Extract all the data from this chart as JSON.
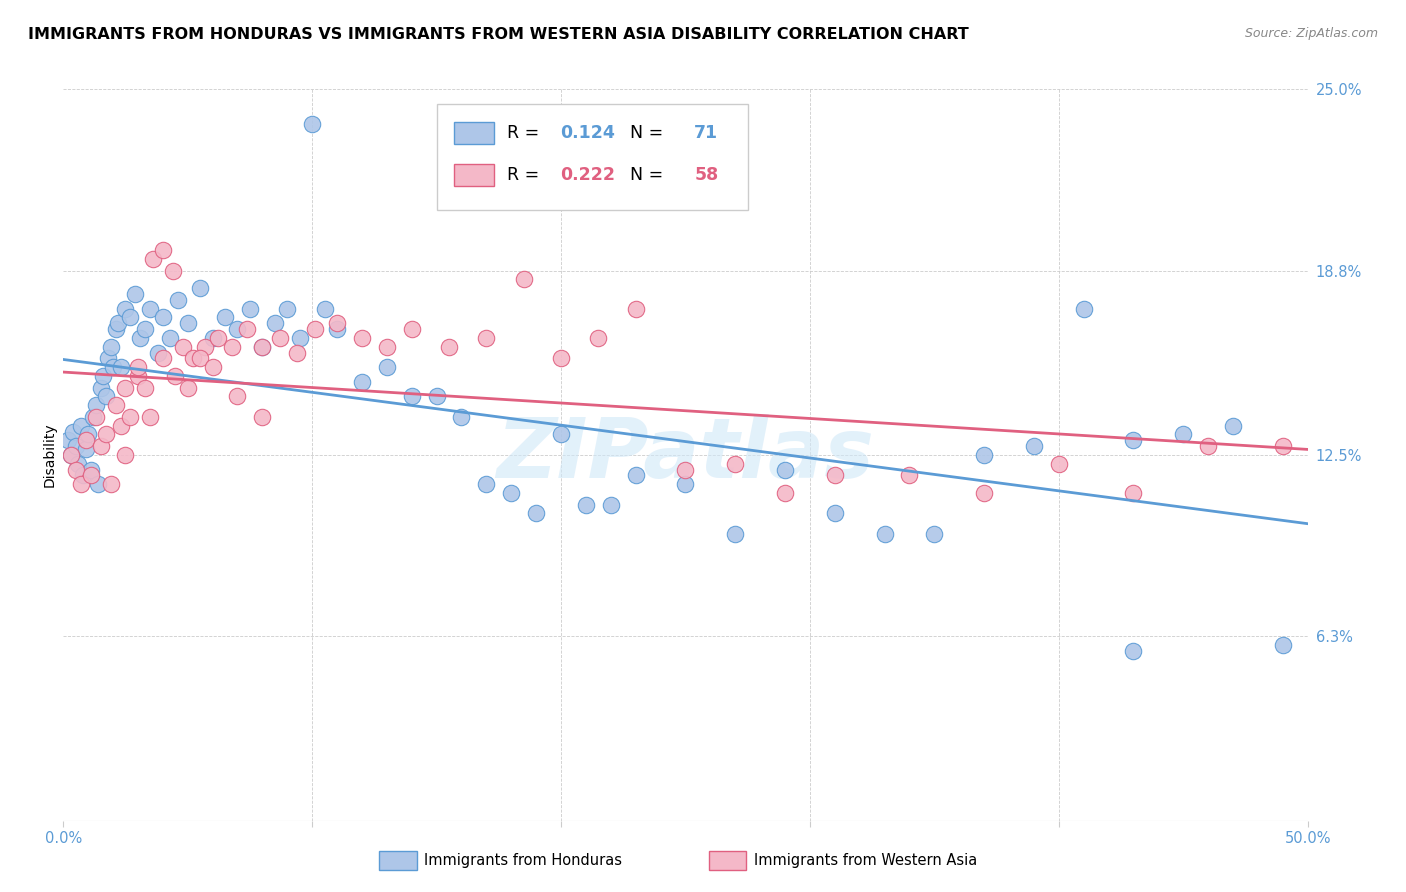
{
  "title": "IMMIGRANTS FROM HONDURAS VS IMMIGRANTS FROM WESTERN ASIA DISABILITY CORRELATION CHART",
  "source": "Source: ZipAtlas.com",
  "ylabel": "Disability",
  "xlim": [
    0,
    0.5
  ],
  "ylim": [
    0,
    0.25
  ],
  "ytick_positions": [
    0.0,
    0.063,
    0.125,
    0.188,
    0.25
  ],
  "ytick_labels": [
    "",
    "6.3%",
    "12.5%",
    "18.8%",
    "25.0%"
  ],
  "xtick_positions": [
    0.0,
    0.1,
    0.2,
    0.3,
    0.4,
    0.5
  ],
  "xtick_labels": [
    "0.0%",
    "",
    "",
    "",
    "",
    "50.0%"
  ],
  "series1_color": "#aec6e8",
  "series1_edgecolor": "#5b9bd5",
  "series2_color": "#f4b8c8",
  "series2_edgecolor": "#e06080",
  "line1_color": "#5b9bd5",
  "line2_color": "#e06080",
  "legend_R1": "0.124",
  "legend_N1": "71",
  "legend_R2": "0.222",
  "legend_N2": "58",
  "legend_label1": "Immigrants from Honduras",
  "legend_label2": "Immigrants from Western Asia",
  "watermark": "ZIPatlas",
  "title_fontsize": 11.5,
  "ylabel_fontsize": 10,
  "tick_fontsize": 10.5,
  "honduras_x": [
    0.002,
    0.003,
    0.004,
    0.005,
    0.006,
    0.007,
    0.008,
    0.009,
    0.01,
    0.011,
    0.012,
    0.013,
    0.014,
    0.015,
    0.016,
    0.017,
    0.018,
    0.019,
    0.02,
    0.021,
    0.022,
    0.023,
    0.025,
    0.027,
    0.029,
    0.031,
    0.033,
    0.035,
    0.038,
    0.04,
    0.043,
    0.046,
    0.05,
    0.055,
    0.06,
    0.065,
    0.07,
    0.075,
    0.08,
    0.085,
    0.09,
    0.095,
    0.1,
    0.105,
    0.11,
    0.12,
    0.13,
    0.14,
    0.15,
    0.16,
    0.17,
    0.18,
    0.19,
    0.2,
    0.21,
    0.22,
    0.23,
    0.25,
    0.27,
    0.29,
    0.31,
    0.33,
    0.35,
    0.37,
    0.39,
    0.41,
    0.43,
    0.45,
    0.47,
    0.49,
    0.43
  ],
  "honduras_y": [
    0.13,
    0.125,
    0.133,
    0.128,
    0.122,
    0.135,
    0.118,
    0.127,
    0.132,
    0.12,
    0.138,
    0.142,
    0.115,
    0.148,
    0.152,
    0.145,
    0.158,
    0.162,
    0.155,
    0.168,
    0.17,
    0.155,
    0.175,
    0.172,
    0.18,
    0.165,
    0.168,
    0.175,
    0.16,
    0.172,
    0.165,
    0.178,
    0.17,
    0.182,
    0.165,
    0.172,
    0.168,
    0.175,
    0.162,
    0.17,
    0.175,
    0.165,
    0.238,
    0.175,
    0.168,
    0.15,
    0.155,
    0.145,
    0.145,
    0.138,
    0.115,
    0.112,
    0.105,
    0.132,
    0.108,
    0.108,
    0.118,
    0.115,
    0.098,
    0.12,
    0.105,
    0.098,
    0.098,
    0.125,
    0.128,
    0.175,
    0.13,
    0.132,
    0.135,
    0.06,
    0.058
  ],
  "western_x": [
    0.003,
    0.005,
    0.007,
    0.009,
    0.011,
    0.013,
    0.015,
    0.017,
    0.019,
    0.021,
    0.023,
    0.025,
    0.027,
    0.03,
    0.033,
    0.036,
    0.04,
    0.044,
    0.048,
    0.052,
    0.057,
    0.062,
    0.068,
    0.074,
    0.08,
    0.087,
    0.094,
    0.101,
    0.11,
    0.12,
    0.13,
    0.14,
    0.155,
    0.17,
    0.185,
    0.2,
    0.215,
    0.23,
    0.25,
    0.27,
    0.29,
    0.31,
    0.34,
    0.37,
    0.4,
    0.43,
    0.46,
    0.49,
    0.025,
    0.03,
    0.035,
    0.04,
    0.045,
    0.05,
    0.055,
    0.06,
    0.07,
    0.08
  ],
  "western_y": [
    0.125,
    0.12,
    0.115,
    0.13,
    0.118,
    0.138,
    0.128,
    0.132,
    0.115,
    0.142,
    0.135,
    0.148,
    0.138,
    0.152,
    0.148,
    0.192,
    0.195,
    0.188,
    0.162,
    0.158,
    0.162,
    0.165,
    0.162,
    0.168,
    0.162,
    0.165,
    0.16,
    0.168,
    0.17,
    0.165,
    0.162,
    0.168,
    0.162,
    0.165,
    0.185,
    0.158,
    0.165,
    0.175,
    0.12,
    0.122,
    0.112,
    0.118,
    0.118,
    0.112,
    0.122,
    0.112,
    0.128,
    0.128,
    0.125,
    0.155,
    0.138,
    0.158,
    0.152,
    0.148,
    0.158,
    0.155,
    0.145,
    0.138
  ]
}
